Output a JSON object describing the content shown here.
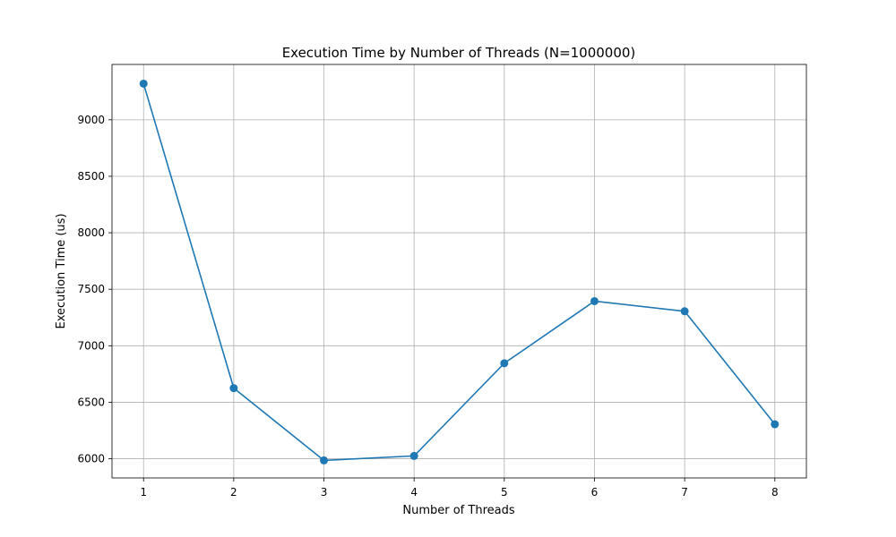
{
  "chart_data": {
    "type": "line",
    "title": "Execution Time by Number of Threads (N=1000000)",
    "xlabel": "Number of Threads",
    "ylabel": "Execution Time (us)",
    "x": [
      1,
      2,
      3,
      4,
      5,
      6,
      7,
      8
    ],
    "xticks": [
      "1",
      "2",
      "3",
      "4",
      "5",
      "6",
      "7",
      "8"
    ],
    "yticks": [
      6000,
      6500,
      7000,
      7500,
      8000,
      8500,
      9000
    ],
    "xlim": [
      0.65,
      8.35
    ],
    "ylim": [
      5830,
      9490
    ],
    "grid": true,
    "marker": "circle",
    "series": [
      {
        "color": "#1f77b4",
        "values": [
          9320,
          6625,
          5985,
          6025,
          6845,
          7395,
          7305,
          6305
        ]
      }
    ]
  }
}
